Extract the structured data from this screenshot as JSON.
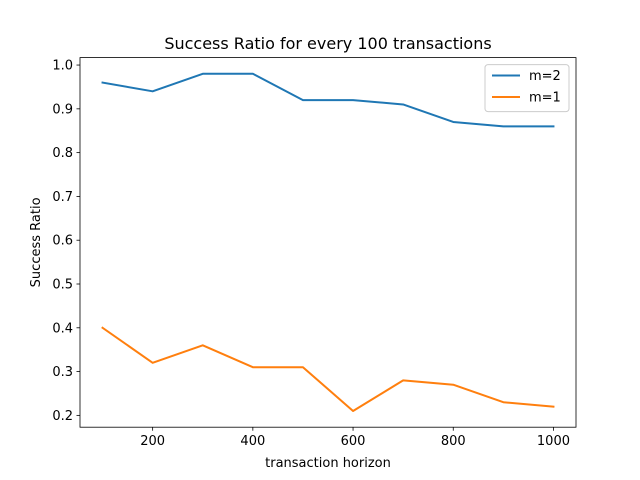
{
  "chart_data": {
    "type": "line",
    "title": "Success Ratio for every 100 transactions",
    "xlabel": "transaction horizon",
    "ylabel": "Success Ratio",
    "x": [
      100,
      200,
      300,
      400,
      500,
      600,
      700,
      800,
      900,
      1000
    ],
    "series": [
      {
        "name": "m=2",
        "color": "#1f77b4",
        "values": [
          0.96,
          0.94,
          0.98,
          0.98,
          0.92,
          0.92,
          0.91,
          0.87,
          0.86,
          0.86
        ]
      },
      {
        "name": "m=1",
        "color": "#ff7f0e",
        "values": [
          0.4,
          0.32,
          0.36,
          0.31,
          0.31,
          0.21,
          0.28,
          0.27,
          0.23,
          0.22
        ]
      }
    ],
    "xlim": [
      55,
      1045
    ],
    "ylim": [
      0.173,
      1.017
    ],
    "xticks": [
      200,
      400,
      600,
      800,
      1000
    ],
    "xtick_labels": [
      "200",
      "400",
      "600",
      "800",
      "1000"
    ],
    "yticks": [
      0.2,
      0.3,
      0.4,
      0.5,
      0.6,
      0.7,
      0.8,
      0.9,
      1.0
    ],
    "ytick_labels": [
      "0.2",
      "0.3",
      "0.4",
      "0.5",
      "0.6",
      "0.7",
      "0.8",
      "0.9",
      "1.0"
    ],
    "grid": false,
    "legend_position": "top-right"
  }
}
